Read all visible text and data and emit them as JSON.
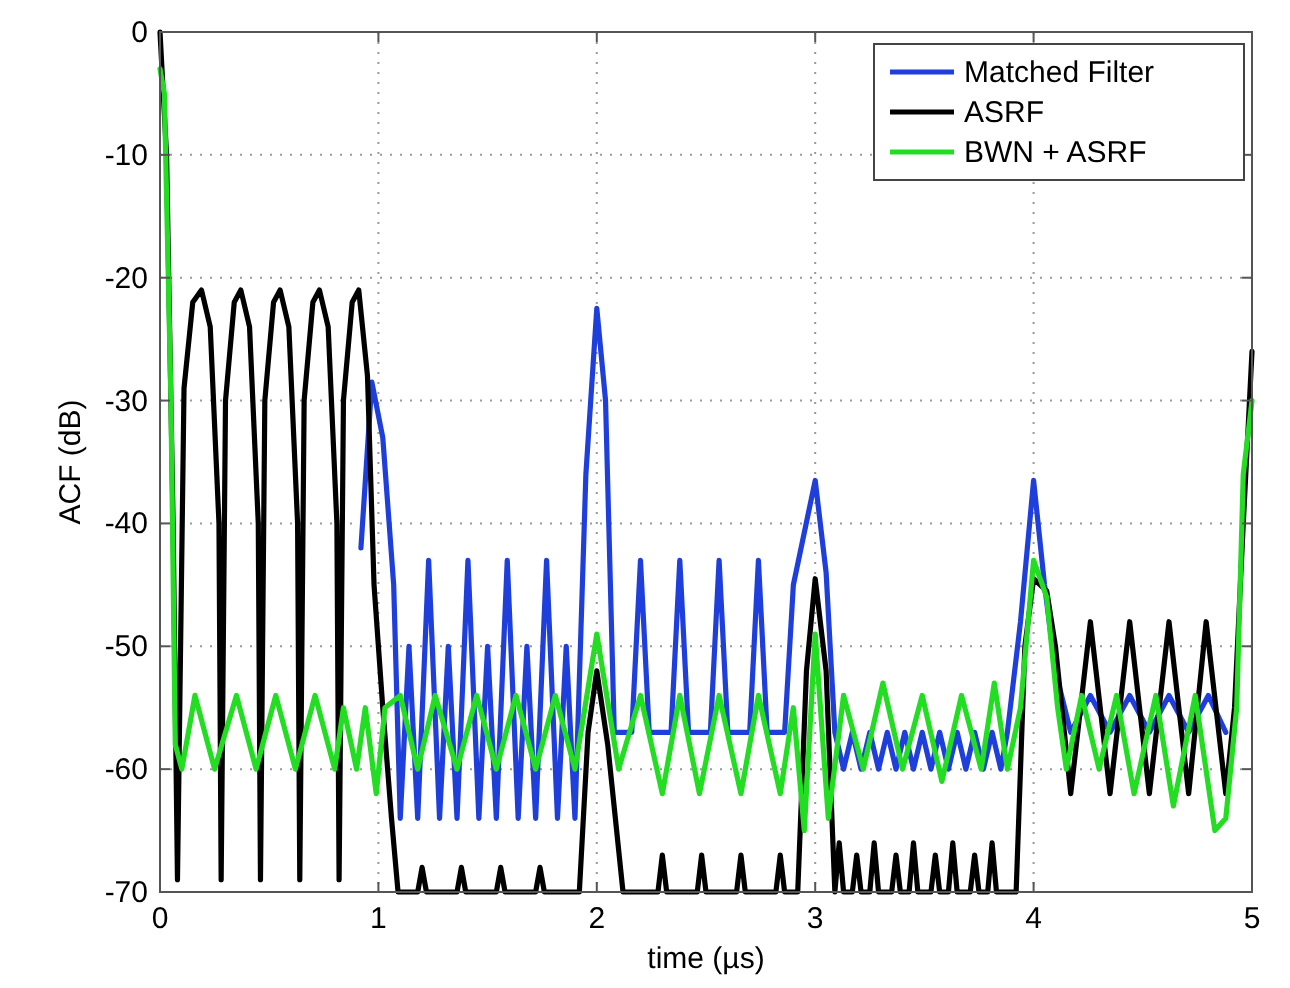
{
  "chart_data": {
    "type": "line",
    "xlabel": "time (µs)",
    "ylabel": "ACF (dB)",
    "xlim": [
      0,
      5
    ],
    "xticks": [
      0,
      1,
      2,
      3,
      4,
      5
    ],
    "ylim": [
      -70,
      0
    ],
    "yticks": [
      -70,
      -60,
      -50,
      -40,
      -30,
      -20,
      -10,
      0
    ],
    "grid": true,
    "legend": "top right",
    "line_style": "solid",
    "marker": "none",
    "series": [
      {
        "name": "Matched Filter",
        "color": "#1f3fdc",
        "x": [
          0.92,
          0.97,
          1.02,
          1.07,
          1.1,
          1.14,
          1.18,
          1.23,
          1.28,
          1.32,
          1.36,
          1.41,
          1.46,
          1.5,
          1.54,
          1.59,
          1.64,
          1.68,
          1.72,
          1.77,
          1.82,
          1.86,
          1.9,
          1.95,
          2.0,
          2.04,
          2.08,
          2.16,
          2.2,
          2.24,
          2.34,
          2.38,
          2.42,
          2.52,
          2.56,
          2.6,
          2.7,
          2.74,
          2.78,
          2.86,
          2.9,
          3.0,
          3.05,
          3.09,
          3.13,
          3.17,
          3.21,
          3.25,
          3.29,
          3.33,
          3.37,
          3.41,
          3.45,
          3.49,
          3.53,
          3.57,
          3.61,
          3.65,
          3.69,
          3.73,
          3.77,
          3.81,
          3.85,
          3.88,
          3.94,
          4.0,
          4.05,
          4.1,
          4.17,
          4.26,
          4.35,
          4.44,
          4.53,
          4.62,
          4.71,
          4.8,
          4.88
        ],
        "values": [
          -42,
          -28.5,
          -33,
          -45,
          -64,
          -50,
          -64,
          -43,
          -64,
          -50,
          -64,
          -43,
          -64,
          -50,
          -64,
          -43,
          -64,
          -50,
          -64,
          -43,
          -64,
          -50,
          -64,
          -36,
          -22.5,
          -30,
          -57,
          -57,
          -43,
          -57,
          -57,
          -43,
          -57,
          -57,
          -43,
          -57,
          -57,
          -43,
          -57,
          -57,
          -45,
          -36.5,
          -44,
          -57,
          -60,
          -57,
          -60,
          -57,
          -60,
          -57,
          -60,
          -57,
          -60,
          -57,
          -60,
          -57,
          -60,
          -57,
          -60,
          -57,
          -60,
          -57,
          -60,
          -57,
          -48,
          -36.5,
          -45,
          -52,
          -57,
          -54,
          -57,
          -54,
          -57,
          -54,
          -57,
          -54,
          -57
        ]
      },
      {
        "name": "ASRF",
        "color": "#000000",
        "x": [
          0,
          0.03,
          0.06,
          0.08,
          0.11,
          0.15,
          0.19,
          0.23,
          0.27,
          0.28,
          0.3,
          0.34,
          0.37,
          0.41,
          0.45,
          0.46,
          0.48,
          0.52,
          0.55,
          0.59,
          0.63,
          0.64,
          0.66,
          0.7,
          0.73,
          0.77,
          0.81,
          0.82,
          0.84,
          0.88,
          0.91,
          0.95,
          0.98,
          1.02,
          1.06,
          1.09,
          1.18,
          1.2,
          1.22,
          1.36,
          1.38,
          1.4,
          1.54,
          1.56,
          1.58,
          1.72,
          1.74,
          1.76,
          1.92,
          1.96,
          2.0,
          2.05,
          2.12,
          2.28,
          2.3,
          2.32,
          2.46,
          2.48,
          2.5,
          2.64,
          2.66,
          2.68,
          2.82,
          2.84,
          2.86,
          2.92,
          2.96,
          3.0,
          3.05,
          3.09,
          3.11,
          3.13,
          3.17,
          3.19,
          3.21,
          3.25,
          3.27,
          3.29,
          3.35,
          3.37,
          3.39,
          3.43,
          3.45,
          3.47,
          3.53,
          3.55,
          3.57,
          3.61,
          3.63,
          3.65,
          3.71,
          3.73,
          3.75,
          3.79,
          3.81,
          3.83,
          3.92,
          3.96,
          4.0,
          4.06,
          4.1,
          4.17,
          4.26,
          4.35,
          4.44,
          4.53,
          4.62,
          4.71,
          4.79,
          4.88,
          4.92,
          4.96,
          5.0
        ],
        "values": [
          0,
          -10,
          -40,
          -69,
          -29,
          -22,
          -21,
          -24,
          -40,
          -69,
          -30,
          -22,
          -21,
          -24,
          -40,
          -69,
          -30,
          -22,
          -21,
          -24,
          -40,
          -69,
          -30,
          -22,
          -21,
          -24,
          -40,
          -69,
          -30,
          -22,
          -21,
          -28,
          -45,
          -55,
          -64,
          -70,
          -70,
          -68,
          -70,
          -70,
          -68,
          -70,
          -70,
          -68,
          -70,
          -70,
          -68,
          -70,
          -70,
          -57,
          -52,
          -58,
          -70,
          -70,
          -67,
          -70,
          -70,
          -67,
          -70,
          -70,
          -67,
          -70,
          -70,
          -67,
          -70,
          -70,
          -52,
          -44.5,
          -52,
          -70,
          -66,
          -70,
          -70,
          -67,
          -70,
          -70,
          -66,
          -70,
          -70,
          -67,
          -70,
          -70,
          -66,
          -70,
          -70,
          -67,
          -70,
          -70,
          -66,
          -70,
          -70,
          -67,
          -70,
          -70,
          -66,
          -70,
          -70,
          -50,
          -44.5,
          -45.5,
          -50,
          -62,
          -48,
          -62,
          -48,
          -62,
          -48,
          -62,
          -48,
          -62,
          -55,
          -40,
          -26
        ]
      },
      {
        "name": "BWN + ASRF",
        "color": "#22dd22",
        "x": [
          0,
          0.02,
          0.05,
          0.07,
          0.1,
          0.16,
          0.25,
          0.35,
          0.44,
          0.53,
          0.62,
          0.71,
          0.8,
          0.84,
          0.9,
          0.94,
          0.99,
          1.03,
          1.1,
          1.18,
          1.26,
          1.36,
          1.45,
          1.54,
          1.63,
          1.72,
          1.81,
          1.9,
          2.0,
          2.1,
          2.2,
          2.3,
          2.38,
          2.47,
          2.56,
          2.66,
          2.74,
          2.84,
          2.9,
          2.95,
          3.0,
          3.06,
          3.13,
          3.22,
          3.31,
          3.4,
          3.49,
          3.58,
          3.67,
          3.76,
          3.82,
          3.88,
          3.94,
          4.0,
          4.06,
          4.11,
          4.15,
          4.22,
          4.3,
          4.38,
          4.46,
          4.56,
          4.64,
          4.74,
          4.83,
          4.88,
          4.93,
          4.96,
          5.0
        ],
        "values": [
          -3,
          -5,
          -30,
          -58,
          -60,
          -54,
          -60,
          -54,
          -60,
          -54,
          -60,
          -54,
          -60,
          -55,
          -60,
          -55,
          -62,
          -55,
          -54,
          -60,
          -54,
          -60,
          -54,
          -60,
          -54,
          -60,
          -54,
          -60,
          -49,
          -60,
          -54,
          -62,
          -54,
          -62,
          -54,
          -62,
          -54,
          -62,
          -55,
          -65,
          -49,
          -64,
          -54,
          -60,
          -53,
          -60,
          -54,
          -61,
          -54,
          -60,
          -53,
          -60,
          -55,
          -43,
          -46,
          -55,
          -60,
          -54,
          -60,
          -54,
          -62,
          -54,
          -63,
          -54,
          -65,
          -64,
          -55,
          -36,
          -30
        ]
      }
    ]
  }
}
